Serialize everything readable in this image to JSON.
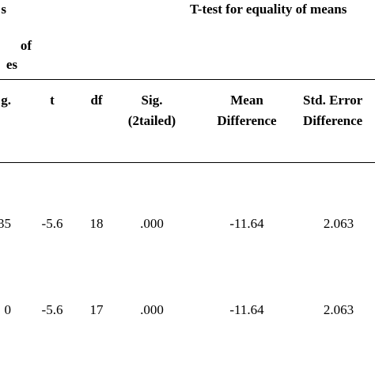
{
  "header": {
    "left_group": [
      "s",
      "of",
      "es"
    ],
    "ttest_group": "T-test for equality of means"
  },
  "columns": [
    [
      "g."
    ],
    [
      "t"
    ],
    [
      "df"
    ],
    [
      "Sig.",
      "(2tailed)"
    ],
    [
      "Mean",
      "Difference"
    ],
    [
      "Std. Error",
      "Difference"
    ]
  ],
  "rows": [
    [
      "35",
      "-5.6",
      "18",
      ".000",
      "-11.64",
      "2.063"
    ],
    [
      "0",
      "-5.6",
      "17",
      ".000",
      "-11.64",
      "2.063"
    ]
  ]
}
